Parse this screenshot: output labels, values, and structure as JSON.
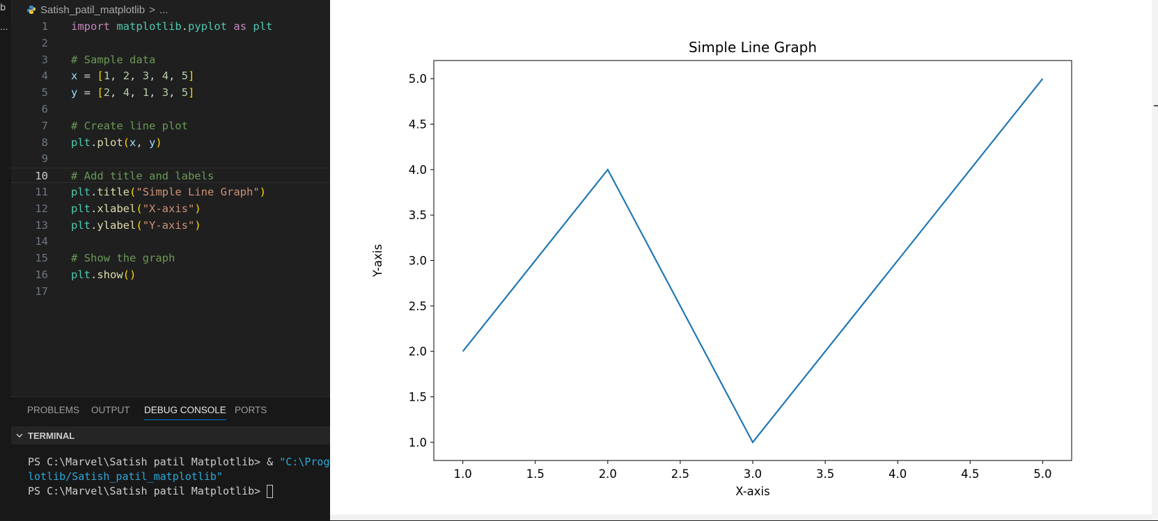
{
  "sidebar": {
    "fragment": "b",
    "more": "..."
  },
  "breadcrumb": {
    "file": "Satish_patil_matplotlib",
    "separator": ">",
    "rest": "..."
  },
  "editor": {
    "line_numbers": [
      "1",
      "2",
      "3",
      "4",
      "5",
      "6",
      "7",
      "8",
      "9",
      "10",
      "11",
      "12",
      "13",
      "14",
      "15",
      "16",
      "17"
    ],
    "active_line": "10",
    "lines": [
      [
        {
          "t": "import",
          "c": "kw"
        },
        {
          "t": " "
        },
        {
          "t": "matplotlib",
          "c": "mod"
        },
        {
          "t": ".",
          "c": "op"
        },
        {
          "t": "pyplot",
          "c": "mod"
        },
        {
          "t": " "
        },
        {
          "t": "as",
          "c": "kw"
        },
        {
          "t": " "
        },
        {
          "t": "plt",
          "c": "mod"
        }
      ],
      [],
      [
        {
          "t": "# Sample data",
          "c": "cm"
        }
      ],
      [
        {
          "t": "x",
          "c": "var"
        },
        {
          "t": " = ",
          "c": "op"
        },
        {
          "t": "[",
          "c": "br"
        },
        {
          "t": "1",
          "c": "num"
        },
        {
          "t": ", ",
          "c": "op"
        },
        {
          "t": "2",
          "c": "num"
        },
        {
          "t": ", ",
          "c": "op"
        },
        {
          "t": "3",
          "c": "num"
        },
        {
          "t": ", ",
          "c": "op"
        },
        {
          "t": "4",
          "c": "num"
        },
        {
          "t": ", ",
          "c": "op"
        },
        {
          "t": "5",
          "c": "num"
        },
        {
          "t": "]",
          "c": "br"
        }
      ],
      [
        {
          "t": "y",
          "c": "var"
        },
        {
          "t": " = ",
          "c": "op"
        },
        {
          "t": "[",
          "c": "br"
        },
        {
          "t": "2",
          "c": "num"
        },
        {
          "t": ", ",
          "c": "op"
        },
        {
          "t": "4",
          "c": "num"
        },
        {
          "t": ", ",
          "c": "op"
        },
        {
          "t": "1",
          "c": "num"
        },
        {
          "t": ", ",
          "c": "op"
        },
        {
          "t": "3",
          "c": "num"
        },
        {
          "t": ", ",
          "c": "op"
        },
        {
          "t": "5",
          "c": "num"
        },
        {
          "t": "]",
          "c": "br"
        }
      ],
      [],
      [
        {
          "t": "# Create line plot",
          "c": "cm"
        }
      ],
      [
        {
          "t": "plt",
          "c": "mod"
        },
        {
          "t": ".",
          "c": "op"
        },
        {
          "t": "plot",
          "c": "fn"
        },
        {
          "t": "(",
          "c": "br"
        },
        {
          "t": "x",
          "c": "var"
        },
        {
          "t": ", ",
          "c": "op"
        },
        {
          "t": "y",
          "c": "var"
        },
        {
          "t": ")",
          "c": "br"
        }
      ],
      [],
      [
        {
          "t": "# Add title and labels",
          "c": "cm"
        }
      ],
      [
        {
          "t": "plt",
          "c": "mod"
        },
        {
          "t": ".",
          "c": "op"
        },
        {
          "t": "title",
          "c": "fn"
        },
        {
          "t": "(",
          "c": "br"
        },
        {
          "t": "\"Simple Line Graph\"",
          "c": "str"
        },
        {
          "t": ")",
          "c": "br"
        }
      ],
      [
        {
          "t": "plt",
          "c": "mod"
        },
        {
          "t": ".",
          "c": "op"
        },
        {
          "t": "xlabel",
          "c": "fn"
        },
        {
          "t": "(",
          "c": "br"
        },
        {
          "t": "\"X-axis\"",
          "c": "str"
        },
        {
          "t": ")",
          "c": "br"
        }
      ],
      [
        {
          "t": "plt",
          "c": "mod"
        },
        {
          "t": ".",
          "c": "op"
        },
        {
          "t": "ylabel",
          "c": "fn"
        },
        {
          "t": "(",
          "c": "br"
        },
        {
          "t": "\"Y-axis\"",
          "c": "str"
        },
        {
          "t": ")",
          "c": "br"
        }
      ],
      [],
      [
        {
          "t": "# Show the graph",
          "c": "cm"
        }
      ],
      [
        {
          "t": "plt",
          "c": "mod"
        },
        {
          "t": ".",
          "c": "op"
        },
        {
          "t": "show",
          "c": "fn"
        },
        {
          "t": "(",
          "c": "br"
        },
        {
          "t": ")",
          "c": "br"
        }
      ],
      []
    ],
    "colors": {
      "keyword": "#c586c0",
      "module": "#4ec9b0",
      "variable": "#9cdcfe",
      "number": "#b5cea8",
      "bracket": "#ffd700",
      "comment": "#6a9955",
      "function": "#dcdcaa",
      "string": "#ce9178"
    }
  },
  "panel": {
    "tabs": [
      "PROBLEMS",
      "OUTPUT",
      "DEBUG CONSOLE",
      "PORTS"
    ],
    "active_tab": "DEBUG CONSOLE",
    "terminal_title": "TERMINAL",
    "terminal_lines": {
      "line1_prompt": "PS C:\\Marvel\\Satish patil Matplotlib> & ",
      "line1_path": "\"C:\\Prog",
      "line2_path": "lotlib/Satish_patil_matplotlib\"",
      "line3_prompt": "PS C:\\Marvel\\Satish patil Matplotlib> "
    }
  },
  "chart_data": {
    "type": "line",
    "title": "Simple Line Graph",
    "xlabel": "X-axis",
    "ylabel": "Y-axis",
    "x": [
      1,
      2,
      3,
      4,
      5
    ],
    "series": [
      {
        "values": [
          2,
          4,
          1,
          3,
          5
        ],
        "color": "#1f77b4"
      }
    ],
    "xlim": [
      0.8,
      5.2
    ],
    "ylim": [
      0.8,
      5.2
    ],
    "xticks": [
      "1.0",
      "1.5",
      "2.0",
      "2.5",
      "3.0",
      "3.5",
      "4.0",
      "4.5",
      "5.0"
    ],
    "yticks": [
      "1.0",
      "1.5",
      "2.0",
      "2.5",
      "3.0",
      "3.5",
      "4.0",
      "4.5",
      "5.0"
    ],
    "grid": false
  }
}
